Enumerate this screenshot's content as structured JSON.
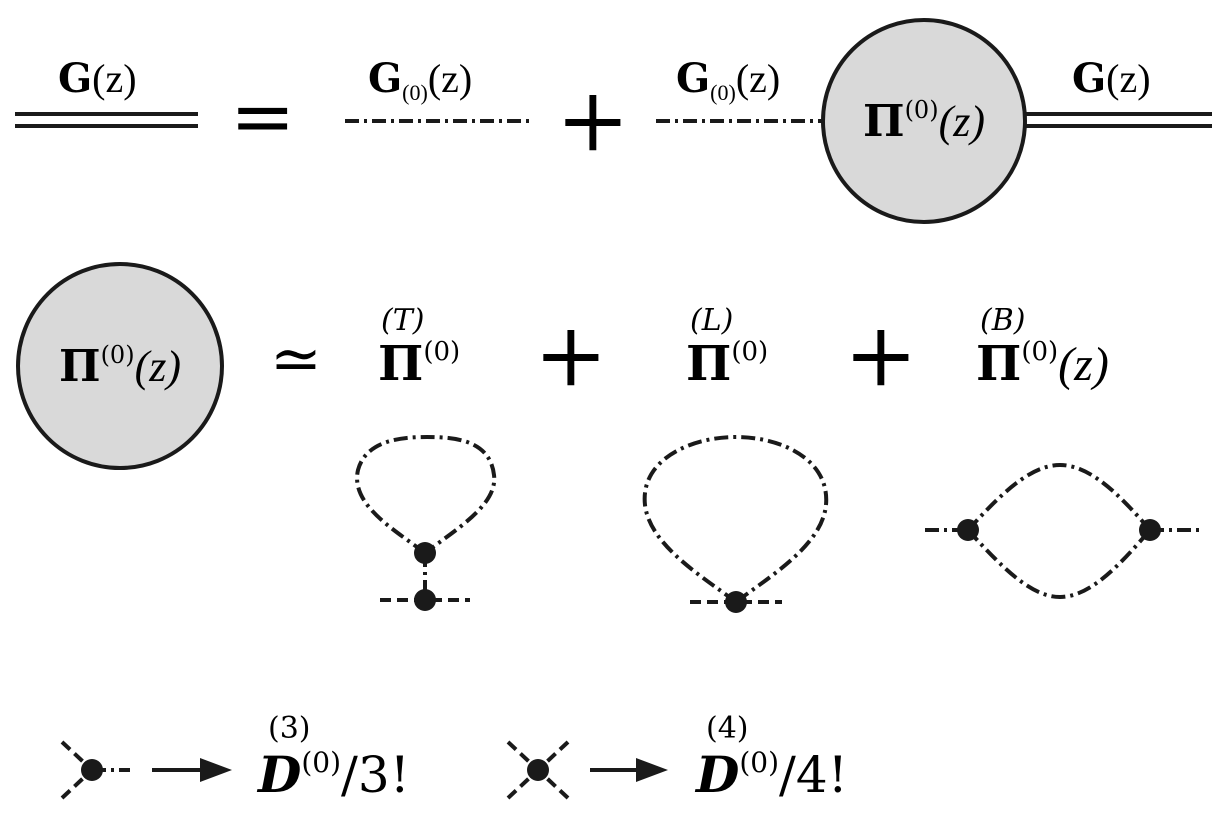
{
  "row1": {
    "lhs_label": {
      "sym": "G",
      "arg": "(z)"
    },
    "equals": "=",
    "free_label": {
      "sym": "G",
      "sub": "(0)",
      "arg": "(z)"
    },
    "plus": "+",
    "free_label2": {
      "sym": "G",
      "sub": "(0)",
      "arg": "(z)"
    },
    "blob": {
      "sym": "Π",
      "sup": "(0)",
      "arg": "(z)"
    },
    "rhs_label": {
      "sym": "G",
      "arg": "(z)"
    }
  },
  "row2": {
    "blob": {
      "sym": "Π",
      "sup": "(0)",
      "arg": "(z)"
    },
    "approx": "≃",
    "terms": [
      {
        "tag": "(T)",
        "sym": "Π",
        "sup": "(0)",
        "arg": ""
      },
      {
        "tag": "(L)",
        "sym": "Π",
        "sup": "(0)",
        "arg": ""
      },
      {
        "tag": "(B)",
        "sym": "Π",
        "sup": "(0)",
        "arg": "(z)"
      }
    ],
    "plus1": "+",
    "plus2": "+"
  },
  "legend": [
    {
      "tag": "(3)",
      "sym": "D",
      "sup": "(0)",
      "tail": "/3!"
    },
    {
      "tag": "(4)",
      "sym": "D",
      "sup": "(0)",
      "tail": "/4!"
    }
  ],
  "colors": {
    "ink": "#1a1a1a",
    "blob_fill": "#d9d9d9"
  }
}
